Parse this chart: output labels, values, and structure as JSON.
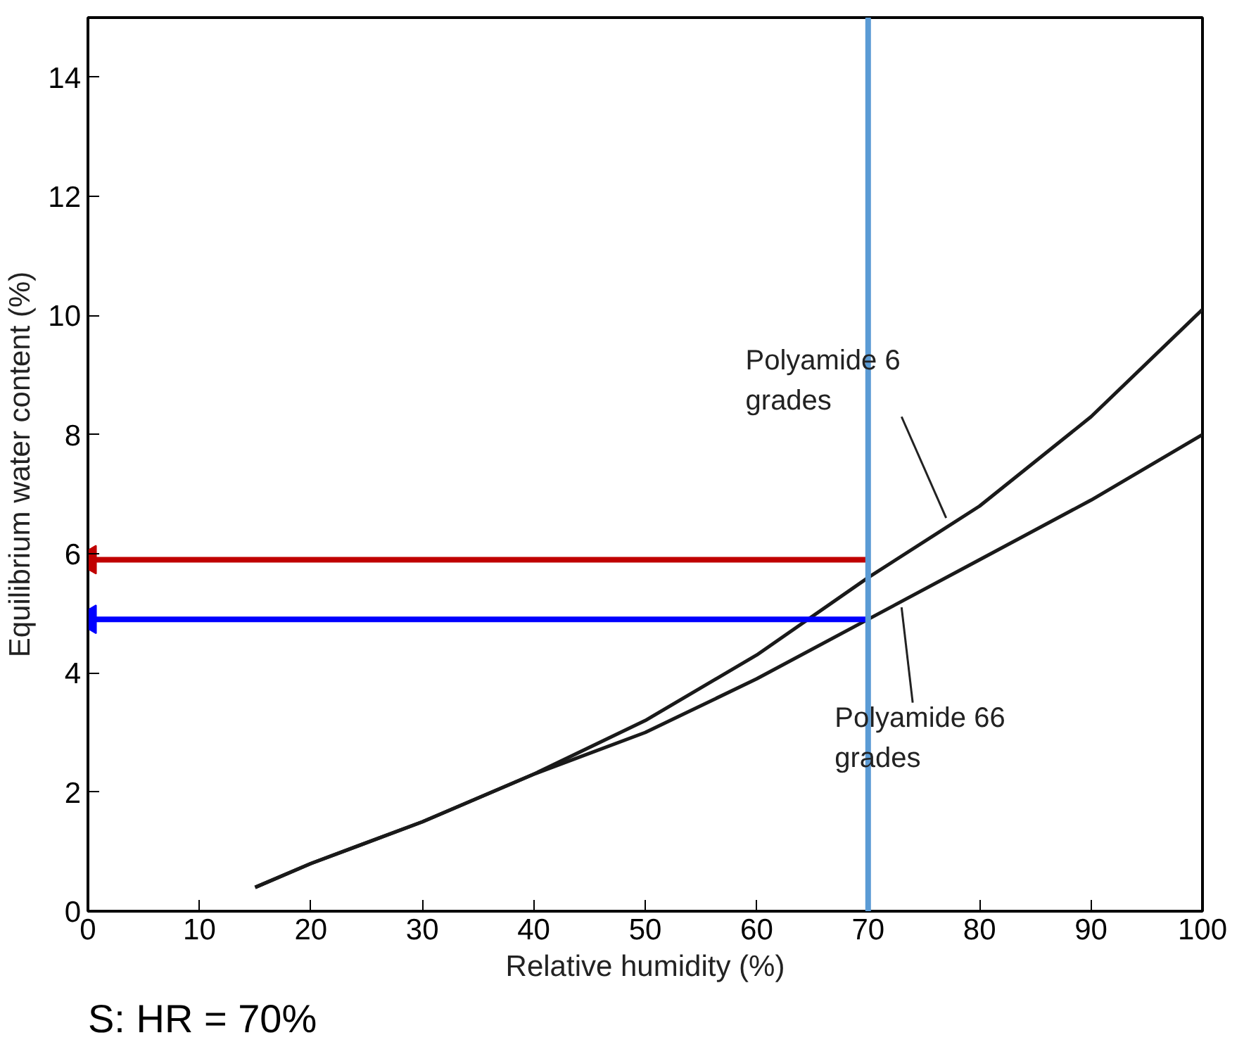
{
  "chart_data": {
    "type": "line",
    "xlabel": "Relative humidity (%)",
    "ylabel": "Equilibrium water content (%)",
    "xlim": [
      0,
      100
    ],
    "xticks": [
      0,
      10,
      20,
      30,
      40,
      50,
      60,
      70,
      80,
      90,
      100
    ],
    "ylim": [
      0,
      15
    ],
    "yticks": [
      0,
      2,
      4,
      6,
      8,
      10,
      12,
      14
    ],
    "grid": false,
    "marker": "none",
    "line_style": "solid",
    "series": [
      {
        "color": "#1a1a1a",
        "x": [
          15,
          20,
          30,
          40,
          50,
          60,
          70,
          80,
          90,
          100
        ],
        "values": [
          0.4,
          0.8,
          1.5,
          2.3,
          3.2,
          4.3,
          5.6,
          6.8,
          8.3,
          10.1
        ]
      },
      {
        "color": "#1a1a1a",
        "x": [
          15,
          20,
          30,
          40,
          50,
          60,
          70,
          80,
          90,
          100
        ],
        "values": [
          0.4,
          0.8,
          1.5,
          2.3,
          3.0,
          3.9,
          4.9,
          5.9,
          6.9,
          8.0
        ]
      },
      {
        "color": "#c00000",
        "x": [
          70,
          0
        ],
        "values": [
          5.9,
          5.9
        ],
        "marker": "triangle"
      },
      {
        "color": "#0000ff",
        "x": [
          70,
          0
        ],
        "values": [
          4.9,
          4.9
        ],
        "marker": "triangle"
      }
    ],
    "ref_lines": [
      {
        "axis": "x",
        "value": 70,
        "label": null,
        "color": "#5b9bd5"
      }
    ],
    "annotations": [
      {
        "text": "Polyamide 6\ngrades",
        "x": 77,
        "y": 6.6
      },
      {
        "text": "Polyamide 66\ngrades",
        "x": 73,
        "y": 5.1
      },
      "S: HR = 70%"
    ]
  }
}
